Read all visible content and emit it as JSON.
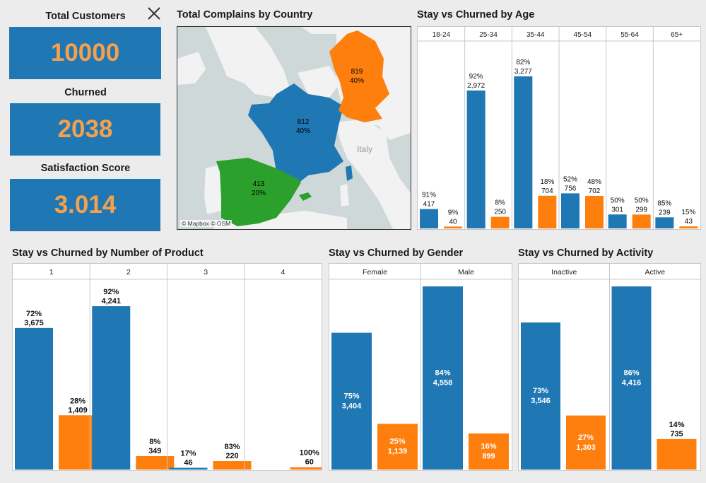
{
  "kpis": {
    "total_customers_label": "Total Customers",
    "total_customers": "10000",
    "churned_label": "Churned",
    "churned": "2038",
    "satisfaction_label": "Satisfaction Score",
    "satisfaction": "3.014"
  },
  "map": {
    "title": "Total Complains by Country",
    "credit": "© Mapbox © OSM",
    "place_label": "Italy",
    "countries": [
      {
        "name": "France",
        "value": "812",
        "pct": "40%",
        "color": "#1f77b4"
      },
      {
        "name": "Germany",
        "value": "819",
        "pct": "40%",
        "color": "#ff7f0e"
      },
      {
        "name": "Spain",
        "value": "413",
        "pct": "20%",
        "color": "#2ca02c"
      }
    ]
  },
  "colors": {
    "stay": "#1f77b4",
    "churned": "#ff7f0e"
  },
  "chart_data": [
    {
      "type": "bar",
      "title": "Stay vs Churned by Age",
      "categories": [
        "18-24",
        "25-34",
        "35-44",
        "45-54",
        "55-64",
        "65+"
      ],
      "series": [
        {
          "values": [
            417,
            2972,
            3277,
            756,
            301,
            239
          ],
          "labels": [
            "91%",
            "92%",
            "82%",
            "52%",
            "50%",
            "85%"
          ]
        },
        {
          "values": [
            40,
            250,
            704,
            702,
            299,
            43
          ],
          "labels": [
            "9%",
            "8%",
            "18%",
            "48%",
            "50%",
            "15%"
          ]
        }
      ]
    },
    {
      "type": "bar",
      "title": "Stay vs Churned by Number of Product",
      "categories": [
        "1",
        "2",
        "3",
        "4"
      ],
      "series": [
        {
          "values": [
            3675,
            4241,
            46,
            0
          ],
          "labels": [
            "72%",
            "92%",
            "17%",
            ""
          ]
        },
        {
          "values": [
            1409,
            349,
            220,
            60
          ],
          "labels": [
            "28%",
            "8%",
            "83%",
            "100%"
          ]
        }
      ]
    },
    {
      "type": "bar",
      "title": "Stay vs Churned by Gender",
      "categories": [
        "Female",
        "Male"
      ],
      "series": [
        {
          "values": [
            3404,
            4558
          ],
          "labels": [
            "75%",
            "84%"
          ]
        },
        {
          "values": [
            1139,
            899
          ],
          "labels": [
            "25%",
            "16%"
          ]
        }
      ]
    },
    {
      "type": "bar",
      "title": "Stay vs Churned by Activity",
      "categories": [
        "Inactive",
        "Active"
      ],
      "series": [
        {
          "values": [
            3546,
            4416
          ],
          "labels": [
            "73%",
            "86%"
          ]
        },
        {
          "values": [
            1303,
            735
          ],
          "labels": [
            "27%",
            "14%"
          ]
        }
      ]
    }
  ]
}
